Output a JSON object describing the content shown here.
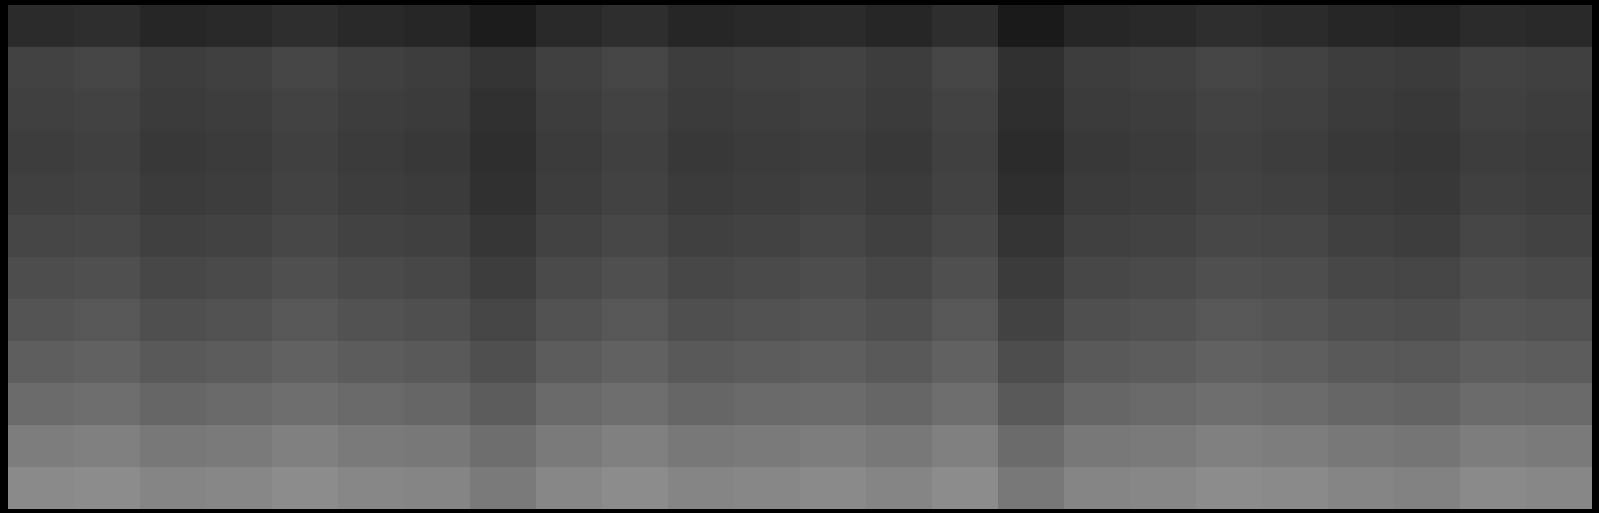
{
  "chart_data": {
    "type": "heatmap",
    "tick_labels": false,
    "zlim": [
      0,
      1
    ],
    "z": [
      [
        0.17,
        0.18,
        0.15,
        0.16,
        0.18,
        0.16,
        0.15,
        0.11,
        0.16,
        0.18,
        0.15,
        0.16,
        0.17,
        0.15,
        0.18,
        0.1,
        0.15,
        0.16,
        0.18,
        0.17,
        0.15,
        0.14,
        0.17,
        0.16
      ],
      [
        0.26,
        0.27,
        0.24,
        0.25,
        0.27,
        0.25,
        0.24,
        0.2,
        0.25,
        0.27,
        0.24,
        0.25,
        0.26,
        0.24,
        0.27,
        0.19,
        0.24,
        0.25,
        0.27,
        0.26,
        0.24,
        0.23,
        0.26,
        0.25
      ],
      [
        0.25,
        0.26,
        0.23,
        0.24,
        0.26,
        0.24,
        0.23,
        0.19,
        0.24,
        0.26,
        0.23,
        0.24,
        0.25,
        0.23,
        0.26,
        0.18,
        0.23,
        0.24,
        0.26,
        0.25,
        0.23,
        0.22,
        0.25,
        0.24
      ],
      [
        0.24,
        0.25,
        0.22,
        0.23,
        0.25,
        0.23,
        0.22,
        0.18,
        0.23,
        0.25,
        0.22,
        0.23,
        0.24,
        0.22,
        0.25,
        0.17,
        0.22,
        0.23,
        0.25,
        0.24,
        0.22,
        0.21,
        0.24,
        0.23
      ],
      [
        0.25,
        0.26,
        0.23,
        0.24,
        0.26,
        0.24,
        0.23,
        0.19,
        0.24,
        0.26,
        0.23,
        0.24,
        0.25,
        0.23,
        0.26,
        0.18,
        0.23,
        0.24,
        0.26,
        0.25,
        0.23,
        0.22,
        0.25,
        0.24
      ],
      [
        0.27,
        0.28,
        0.25,
        0.26,
        0.28,
        0.26,
        0.25,
        0.21,
        0.26,
        0.28,
        0.25,
        0.26,
        0.27,
        0.25,
        0.28,
        0.2,
        0.25,
        0.26,
        0.28,
        0.27,
        0.25,
        0.24,
        0.27,
        0.26
      ],
      [
        0.3,
        0.31,
        0.28,
        0.29,
        0.31,
        0.29,
        0.28,
        0.24,
        0.29,
        0.31,
        0.28,
        0.29,
        0.3,
        0.28,
        0.31,
        0.23,
        0.28,
        0.29,
        0.31,
        0.3,
        0.28,
        0.27,
        0.3,
        0.29
      ],
      [
        0.33,
        0.34,
        0.31,
        0.32,
        0.34,
        0.32,
        0.31,
        0.27,
        0.32,
        0.34,
        0.31,
        0.32,
        0.33,
        0.31,
        0.34,
        0.26,
        0.31,
        0.32,
        0.34,
        0.33,
        0.31,
        0.3,
        0.33,
        0.32
      ],
      [
        0.37,
        0.38,
        0.35,
        0.36,
        0.38,
        0.36,
        0.35,
        0.31,
        0.36,
        0.38,
        0.35,
        0.36,
        0.37,
        0.35,
        0.38,
        0.3,
        0.35,
        0.36,
        0.38,
        0.37,
        0.35,
        0.34,
        0.37,
        0.36
      ],
      [
        0.42,
        0.43,
        0.4,
        0.41,
        0.43,
        0.41,
        0.4,
        0.36,
        0.41,
        0.43,
        0.4,
        0.41,
        0.42,
        0.4,
        0.43,
        0.35,
        0.4,
        0.41,
        0.43,
        0.42,
        0.4,
        0.39,
        0.42,
        0.41
      ],
      [
        0.49,
        0.5,
        0.47,
        0.48,
        0.5,
        0.48,
        0.47,
        0.43,
        0.48,
        0.5,
        0.47,
        0.48,
        0.49,
        0.47,
        0.5,
        0.42,
        0.47,
        0.48,
        0.5,
        0.49,
        0.47,
        0.46,
        0.49,
        0.48
      ],
      [
        0.54,
        0.55,
        0.52,
        0.53,
        0.55,
        0.53,
        0.52,
        0.48,
        0.53,
        0.55,
        0.52,
        0.53,
        0.54,
        0.52,
        0.55,
        0.47,
        0.52,
        0.53,
        0.55,
        0.54,
        0.52,
        0.51,
        0.54,
        0.53
      ]
    ]
  }
}
